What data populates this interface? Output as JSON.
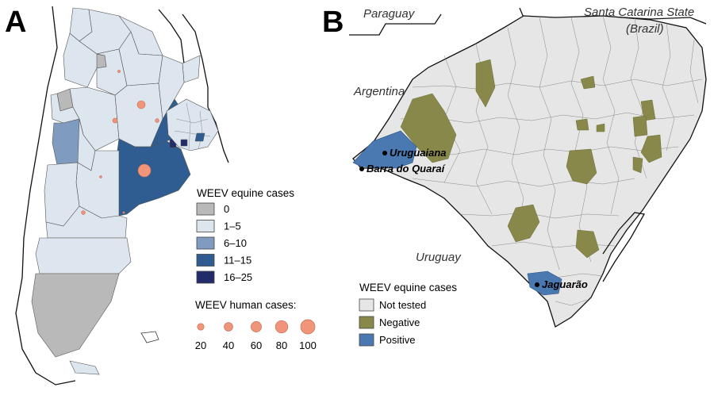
{
  "panels": {
    "a": {
      "letter": "A",
      "equine_legend": {
        "title": "WEEV equine cases",
        "items": [
          {
            "label": "0",
            "color": "#b9b9b9"
          },
          {
            "label": "1–5",
            "color": "#dde6ef"
          },
          {
            "label": "6–10",
            "color": "#7f9cc0"
          },
          {
            "label": "11–15",
            "color": "#2f5d91"
          },
          {
            "label": "16–25",
            "color": "#232c6a"
          }
        ]
      },
      "human_legend": {
        "title": "WEEV human cases:",
        "color": "#f0957a",
        "items": [
          {
            "label": "20",
            "value": 20
          },
          {
            "label": "40",
            "value": 40
          },
          {
            "label": "60",
            "value": 60
          },
          {
            "label": "80",
            "value": 80
          },
          {
            "label": "100",
            "value": 100
          }
        ]
      }
    },
    "b": {
      "letter": "B",
      "regions": {
        "paraguay": "Paraguay",
        "santa_catarina_1": "Santa Catarina State",
        "santa_catarina_2": "(Brazil)",
        "argentina": "Argentina",
        "uruguay": "Uruguay"
      },
      "cities": {
        "uruguaiana": "Uruguaiana",
        "barra": "Barra do Quaraí",
        "jaguarao": "Jaguarão"
      },
      "equine_legend": {
        "title": "WEEV equine cases",
        "items": [
          {
            "label": "Not tested",
            "color": "#e6e6e6"
          },
          {
            "label": "Negative",
            "color": "#87884a"
          },
          {
            "label": "Positive",
            "color": "#4a78b0"
          }
        ]
      }
    }
  }
}
